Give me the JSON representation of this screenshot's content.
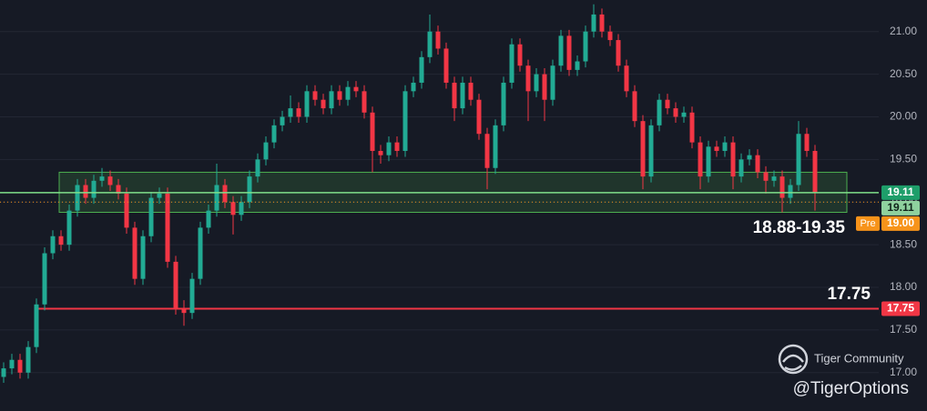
{
  "chart_data": {
    "type": "candlestick",
    "up_color": "#22ab94",
    "down_color": "#f23645",
    "ylim": [
      16.55,
      21.37
    ],
    "yticks": [
      {
        "value": 17,
        "label": "17.00"
      },
      {
        "value": 17.5,
        "label": "17.50"
      },
      {
        "value": 18,
        "label": "18.00"
      },
      {
        "value": 18.5,
        "label": "18.50"
      },
      {
        "value": 19,
        "label": "19.00"
      },
      {
        "value": 19.5,
        "label": "19.50"
      },
      {
        "value": 20,
        "label": "20.00"
      },
      {
        "value": 20.5,
        "label": "20.50"
      },
      {
        "value": 21,
        "label": "21.00"
      }
    ],
    "candles": [
      [
        16.95,
        17.12,
        16.88,
        17.05
      ],
      [
        17.05,
        17.22,
        16.98,
        17.15
      ],
      [
        17.15,
        17.22,
        16.93,
        17.0
      ],
      [
        17.0,
        17.37,
        16.93,
        17.3
      ],
      [
        17.3,
        17.87,
        17.23,
        17.8
      ],
      [
        17.8,
        18.47,
        17.73,
        18.4
      ],
      [
        18.4,
        18.67,
        18.33,
        18.6
      ],
      [
        18.6,
        18.67,
        18.43,
        18.5
      ],
      [
        18.5,
        18.97,
        18.43,
        18.9
      ],
      [
        18.9,
        19.27,
        18.83,
        19.2
      ],
      [
        19.2,
        19.27,
        18.98,
        19.05
      ],
      [
        19.05,
        19.32,
        18.98,
        19.25
      ],
      [
        19.25,
        19.4,
        19.18,
        19.3
      ],
      [
        19.3,
        19.37,
        19.13,
        19.2
      ],
      [
        19.2,
        19.27,
        19.03,
        19.1
      ],
      [
        19.1,
        19.17,
        18.63,
        18.7
      ],
      [
        18.7,
        18.77,
        18.03,
        18.1
      ],
      [
        18.1,
        18.67,
        18.03,
        18.6
      ],
      [
        18.6,
        19.12,
        18.53,
        19.05
      ],
      [
        19.05,
        19.17,
        18.98,
        19.1
      ],
      [
        19.1,
        19.17,
        18.23,
        18.3
      ],
      [
        18.3,
        18.37,
        17.68,
        17.75
      ],
      [
        17.75,
        17.85,
        17.55,
        17.7
      ],
      [
        17.7,
        18.17,
        17.63,
        18.1
      ],
      [
        18.1,
        18.77,
        18.03,
        18.7
      ],
      [
        18.7,
        18.97,
        18.63,
        18.9
      ],
      [
        18.9,
        19.45,
        18.83,
        19.2
      ],
      [
        19.2,
        19.27,
        18.93,
        19.0
      ],
      [
        19.0,
        19.07,
        18.62,
        18.85
      ],
      [
        18.85,
        19.07,
        18.78,
        19.0
      ],
      [
        19.0,
        19.37,
        18.93,
        19.3
      ],
      [
        19.3,
        19.57,
        19.23,
        19.5
      ],
      [
        19.5,
        19.77,
        19.43,
        19.7
      ],
      [
        19.7,
        19.97,
        19.63,
        19.9
      ],
      [
        19.9,
        20.07,
        19.83,
        20.0
      ],
      [
        20.0,
        20.25,
        19.93,
        20.1
      ],
      [
        20.1,
        20.17,
        19.93,
        20.0
      ],
      [
        20.0,
        20.37,
        19.93,
        20.3
      ],
      [
        20.3,
        20.37,
        20.13,
        20.2
      ],
      [
        20.2,
        20.27,
        20.03,
        20.1
      ],
      [
        20.1,
        20.37,
        20.03,
        20.3
      ],
      [
        20.3,
        20.37,
        20.13,
        20.2
      ],
      [
        20.2,
        20.42,
        20.13,
        20.35
      ],
      [
        20.35,
        20.42,
        20.23,
        20.3
      ],
      [
        20.3,
        20.37,
        19.98,
        20.05
      ],
      [
        20.05,
        20.12,
        19.35,
        19.6
      ],
      [
        19.6,
        19.67,
        19.45,
        19.55
      ],
      [
        19.55,
        19.77,
        19.48,
        19.7
      ],
      [
        19.7,
        19.77,
        19.53,
        19.6
      ],
      [
        19.6,
        20.37,
        19.53,
        20.3
      ],
      [
        20.3,
        20.47,
        20.23,
        20.4
      ],
      [
        20.4,
        20.77,
        20.33,
        20.7
      ],
      [
        20.7,
        21.2,
        20.63,
        21.0
      ],
      [
        21.0,
        21.07,
        20.73,
        20.8
      ],
      [
        20.8,
        20.87,
        20.33,
        20.4
      ],
      [
        20.4,
        20.47,
        19.95,
        20.1
      ],
      [
        20.1,
        20.47,
        20.03,
        20.4
      ],
      [
        20.4,
        20.47,
        20.13,
        20.2
      ],
      [
        20.2,
        20.27,
        19.73,
        19.8
      ],
      [
        19.8,
        19.87,
        19.15,
        19.4
      ],
      [
        19.4,
        19.97,
        19.33,
        19.9
      ],
      [
        19.9,
        20.47,
        19.83,
        20.4
      ],
      [
        20.4,
        20.92,
        20.33,
        20.85
      ],
      [
        20.85,
        20.92,
        20.53,
        20.6
      ],
      [
        20.6,
        20.67,
        19.95,
        20.3
      ],
      [
        20.3,
        20.57,
        20.23,
        20.5
      ],
      [
        20.5,
        20.57,
        19.95,
        20.2
      ],
      [
        20.2,
        20.67,
        20.13,
        20.6
      ],
      [
        20.6,
        21.02,
        20.53,
        20.95
      ],
      [
        20.95,
        21.02,
        20.48,
        20.55
      ],
      [
        20.55,
        20.72,
        20.48,
        20.65
      ],
      [
        20.65,
        21.07,
        20.58,
        21.0
      ],
      [
        21.0,
        21.32,
        20.93,
        21.2
      ],
      [
        21.2,
        21.27,
        20.93,
        21.0
      ],
      [
        21.0,
        21.07,
        20.83,
        20.9
      ],
      [
        20.9,
        20.97,
        20.53,
        20.6
      ],
      [
        20.6,
        20.67,
        20.23,
        20.3
      ],
      [
        20.3,
        20.37,
        19.88,
        19.95
      ],
      [
        19.95,
        20.02,
        19.15,
        19.3
      ],
      [
        19.3,
        19.97,
        19.23,
        19.9
      ],
      [
        19.9,
        20.27,
        19.83,
        20.2
      ],
      [
        20.2,
        20.27,
        20.03,
        20.1
      ],
      [
        20.1,
        20.17,
        19.93,
        20.0
      ],
      [
        20.0,
        20.12,
        19.93,
        20.05
      ],
      [
        20.05,
        20.12,
        19.63,
        19.7
      ],
      [
        19.7,
        19.77,
        19.15,
        19.3
      ],
      [
        19.3,
        19.72,
        19.23,
        19.65
      ],
      [
        19.65,
        19.72,
        19.53,
        19.6
      ],
      [
        19.6,
        19.77,
        19.53,
        19.7
      ],
      [
        19.7,
        19.77,
        19.15,
        19.3
      ],
      [
        19.3,
        19.57,
        19.23,
        19.5
      ],
      [
        19.5,
        19.62,
        19.43,
        19.55
      ],
      [
        19.55,
        19.62,
        19.28,
        19.35
      ],
      [
        19.35,
        19.42,
        19.1,
        19.25
      ],
      [
        19.25,
        19.37,
        19.18,
        19.3
      ],
      [
        19.3,
        19.37,
        18.88,
        19.05
      ],
      [
        19.05,
        19.27,
        18.98,
        19.2
      ],
      [
        19.2,
        19.95,
        19.13,
        19.8
      ],
      [
        19.8,
        19.87,
        19.53,
        19.6
      ],
      [
        19.6,
        19.67,
        18.9,
        19.11
      ]
    ],
    "zone": {
      "low": 18.88,
      "high": 19.35,
      "label": "18.88-19.35",
      "color": "#4caf50"
    },
    "support": {
      "value": 17.75,
      "label": "17.75",
      "color": "#f23645"
    },
    "price_tags": [
      {
        "value": 19.11,
        "label": "19.11",
        "color": "#1e9e6a",
        "line": "solid"
      },
      {
        "value": 19.11,
        "label": "19.11",
        "color": "#8fd19e",
        "line": "none"
      },
      {
        "value": 19.0,
        "label": "19.00",
        "color": "#f7931a",
        "line": "dotted",
        "prefix": "Pre"
      },
      {
        "value": 17.75,
        "label": "17.75",
        "color": "#f23645",
        "line": "none"
      }
    ],
    "watermark": {
      "brand": "Tiger Community",
      "handle": "@TigerOptions"
    }
  }
}
